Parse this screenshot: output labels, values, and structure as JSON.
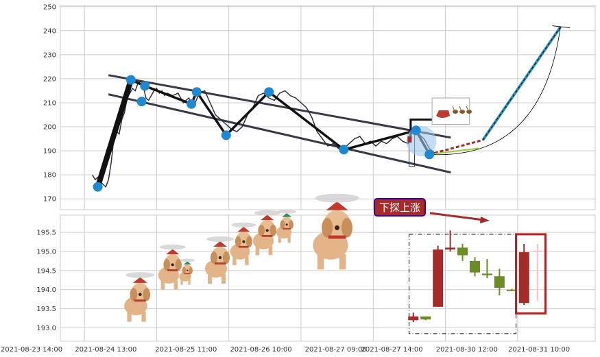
{
  "colors": {
    "panel_bg": "#ffffff",
    "grid": "#cccccc",
    "price_line": "#2b2d3a",
    "channel": "#383a47",
    "zigzag": "#111111",
    "pivot": "#1f88d0",
    "glow": "#9cc7ea",
    "candle_up": "#a52a2a",
    "candle_down": "#6b8e23",
    "highlight_box": "#b22222",
    "annotation_bg": "#a52a2a",
    "annotation_border": "#4b0082",
    "arrow": "#a52a2a",
    "projection": "#2b8cbe"
  },
  "icons": {
    "dog_sprite": "flying-dog-with-propeller-hat",
    "sleigh_sprite": "santa-sleigh-with-reindeer"
  },
  "chart_data": [
    {
      "type": "line",
      "panel": "top",
      "ylim": [
        165.5,
        250.5
      ],
      "xlim": [
        0,
        100
      ],
      "yticks": [
        170,
        180,
        190,
        200,
        210,
        220,
        230,
        240,
        250
      ],
      "grid": true,
      "series": [
        {
          "role": "price",
          "x": [
            6,
            6.5,
            7,
            7.5,
            8,
            8.5,
            9,
            9.5,
            10,
            10.5,
            11,
            11.5,
            12,
            12.5,
            13,
            13.5,
            14,
            14.5,
            15,
            15.5,
            16,
            16.5,
            17,
            17.5,
            18,
            18.5,
            19,
            19.5,
            20,
            21,
            22,
            23,
            24,
            25,
            26,
            27,
            28,
            29,
            30,
            31,
            32,
            33,
            34,
            35,
            36,
            37,
            38,
            39,
            40,
            41,
            42,
            43,
            44,
            45,
            46,
            47,
            48,
            49,
            50,
            51,
            52,
            53,
            54,
            55,
            56,
            57,
            58,
            59,
            60,
            61,
            62,
            63,
            64,
            65,
            66,
            67,
            68,
            69,
            70
          ],
          "y": [
            180,
            178,
            179,
            177,
            176,
            175,
            178,
            185,
            195,
            198,
            197,
            203,
            206,
            212,
            214,
            216,
            215,
            218,
            219,
            217,
            212,
            211,
            213,
            215,
            216,
            214,
            215,
            213,
            214,
            213,
            214,
            210,
            212,
            209,
            214,
            215,
            210,
            205,
            203,
            201,
            199,
            198,
            200,
            205,
            208,
            213,
            214,
            212,
            211,
            214,
            215,
            213,
            212,
            210,
            208,
            204,
            198,
            195,
            192,
            193,
            191,
            191,
            193,
            195,
            196,
            193,
            194,
            192,
            194,
            193,
            195,
            196,
            194,
            193,
            199,
            197,
            195,
            191,
            189
          ]
        }
      ],
      "pivots": [
        {
          "x": 7.0,
          "y": 175.0
        },
        {
          "x": 13.2,
          "y": 219.5
        },
        {
          "x": 15.2,
          "y": 210.5
        },
        {
          "x": 15.8,
          "y": 217.0
        },
        {
          "x": 24.5,
          "y": 209.5
        },
        {
          "x": 25.5,
          "y": 214.5
        },
        {
          "x": 31.0,
          "y": 196.5
        },
        {
          "x": 39.0,
          "y": 214.5
        },
        {
          "x": 53.0,
          "y": 190.5
        },
        {
          "x": 66.5,
          "y": 198.5
        },
        {
          "x": 69.0,
          "y": 188.5
        }
      ],
      "zigzag": [
        {
          "x": 7.0,
          "y": 175.0
        },
        {
          "x": 13.2,
          "y": 219.5
        },
        {
          "x": 15.8,
          "y": 217.0
        },
        {
          "x": 24.5,
          "y": 209.5
        },
        {
          "x": 25.5,
          "y": 214.5
        },
        {
          "x": 31.0,
          "y": 196.5
        },
        {
          "x": 39.0,
          "y": 214.5
        },
        {
          "x": 53.0,
          "y": 190.5
        },
        {
          "x": 66.5,
          "y": 198.5
        },
        {
          "x": 69.0,
          "y": 188.5
        }
      ],
      "channel_upper": [
        {
          "x": 9.0,
          "y": 221.5
        },
        {
          "x": 73.0,
          "y": 195.5
        }
      ],
      "channel_lower": [
        {
          "x": 9.0,
          "y": 213.5
        },
        {
          "x": 73.0,
          "y": 181.0
        }
      ],
      "projection": [
        {
          "x": 69.0,
          "y": 188.5
        },
        {
          "x": 79.0,
          "y": 194.5
        },
        {
          "x": 93.5,
          "y": 241.5
        }
      ],
      "sleigh_box": {
        "x1": 69.5,
        "y1": 212.0,
        "x2": 76.5,
        "y2": 201.0
      }
    },
    {
      "type": "candlestick",
      "panel": "bottom",
      "ylim": [
        192.65,
        195.95
      ],
      "yticks": [
        193.0,
        193.5,
        194.0,
        194.5,
        195.0,
        195.5
      ],
      "xticklabels": [
        "2021-08-23 14:00",
        "2021-08-24 13:00",
        "2021-08-25 11:00",
        "2021-08-26 10:00",
        "2021-08-27 09:00",
        "2021-08-27 14:00",
        "2021-08-30 12:00",
        "2021-08-31 10:00"
      ],
      "grid": true,
      "candles": [
        {
          "x": 66.0,
          "open": 193.2,
          "close": 193.3,
          "high": 193.4,
          "low": 193.15
        },
        {
          "x": 68.3,
          "open": 193.3,
          "close": 193.22,
          "high": 193.3,
          "low": 193.2
        },
        {
          "x": 70.6,
          "open": 193.55,
          "close": 195.05,
          "high": 195.15,
          "low": 193.55
        },
        {
          "x": 72.9,
          "open": 195.05,
          "close": 195.1,
          "high": 195.55,
          "low": 195.0
        },
        {
          "x": 75.2,
          "open": 195.1,
          "close": 194.9,
          "high": 195.2,
          "low": 194.75
        },
        {
          "x": 77.5,
          "open": 194.75,
          "close": 194.45,
          "high": 194.85,
          "low": 194.35
        },
        {
          "x": 79.8,
          "open": 194.42,
          "close": 194.38,
          "high": 194.8,
          "low": 194.3
        },
        {
          "x": 82.1,
          "open": 194.35,
          "close": 194.05,
          "high": 194.55,
          "low": 193.85
        },
        {
          "x": 84.4,
          "open": 194.0,
          "close": 193.98,
          "high": 194.02,
          "low": 193.96
        },
        {
          "x": 86.7,
          "open": 193.65,
          "close": 194.98,
          "high": 195.2,
          "low": 193.6
        }
      ],
      "annotation": "下探上涨"
    }
  ]
}
